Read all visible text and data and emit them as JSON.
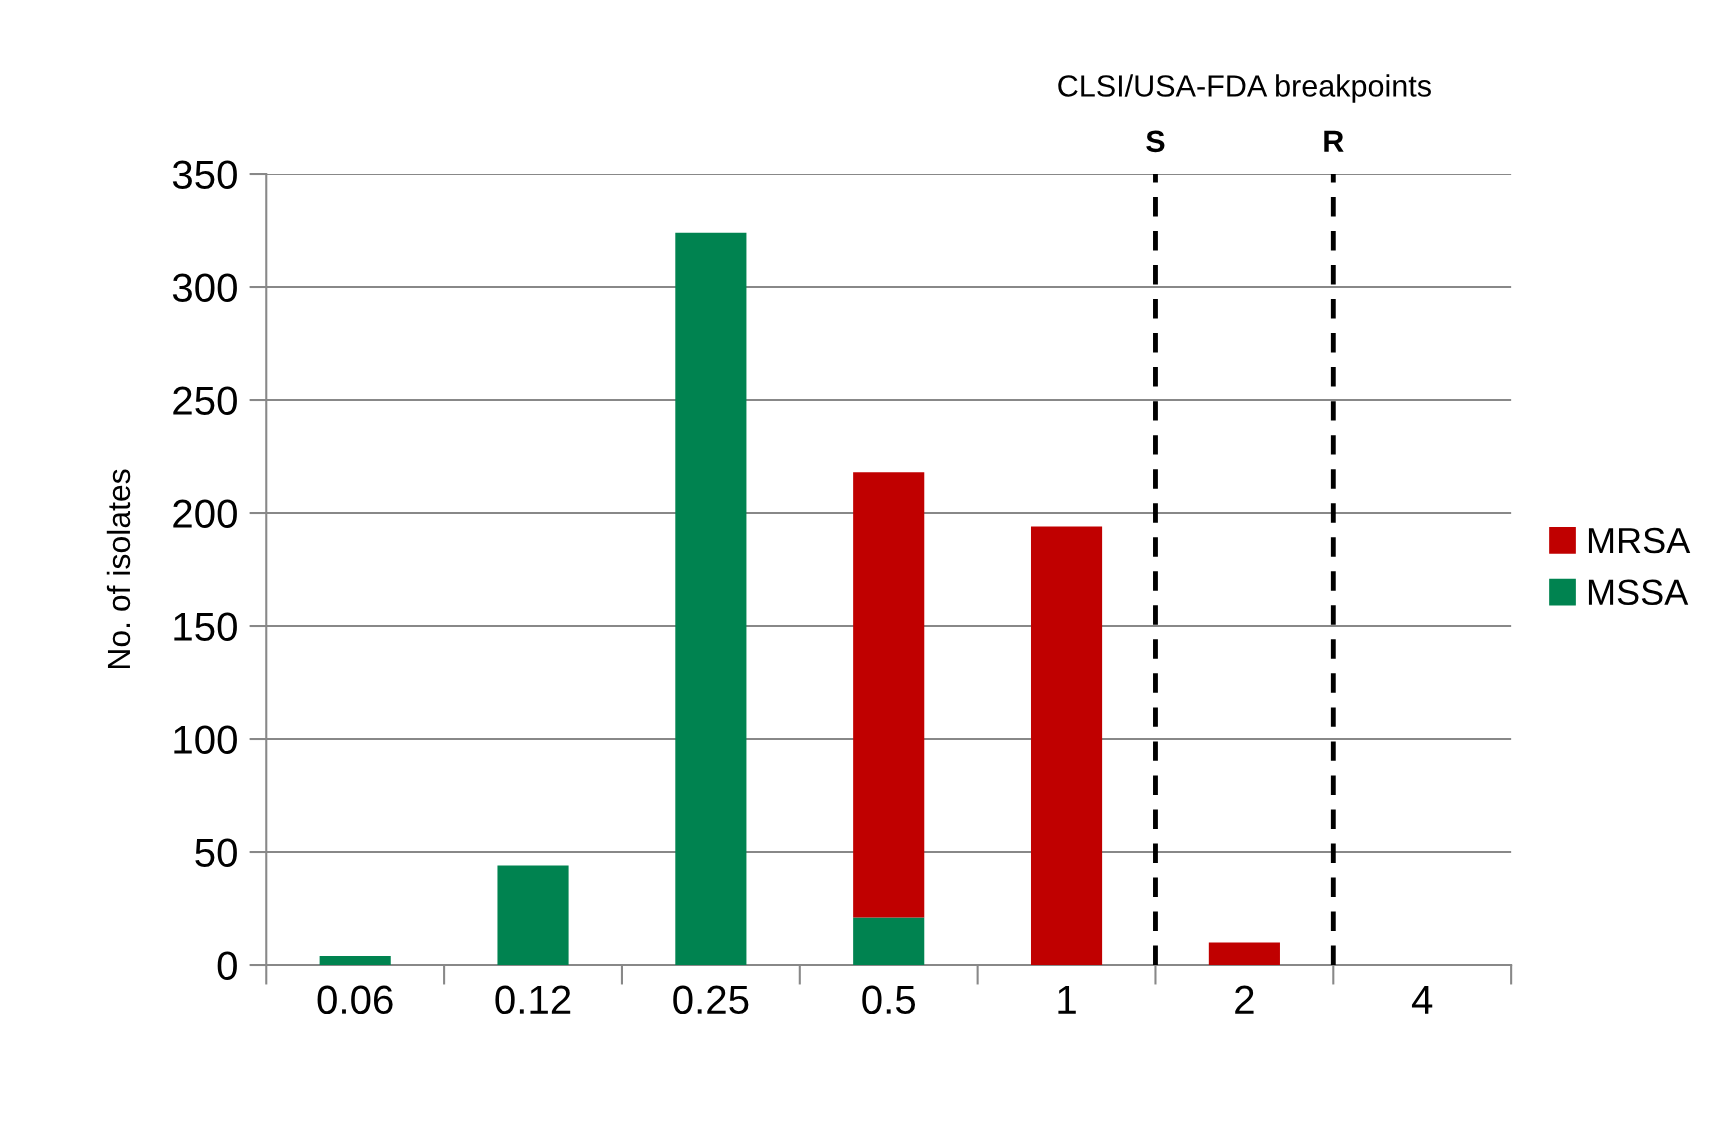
{
  "chart_data": {
    "type": "bar",
    "stacked": true,
    "ylabel": "No. of isolates",
    "categories": [
      "0.06",
      "0.12",
      "0.25",
      "0.5",
      "1",
      "2",
      "4"
    ],
    "series": [
      {
        "name": "MSSA",
        "color": "#008350",
        "values": [
          4,
          44,
          324,
          21,
          0,
          0,
          0
        ]
      },
      {
        "name": "MRSA",
        "color": "#c00000",
        "values": [
          0,
          0,
          0,
          197,
          194,
          10,
          0
        ]
      }
    ],
    "ylim": [
      0,
      350
    ],
    "yticks": [
      0,
      50,
      100,
      150,
      200,
      250,
      300,
      350
    ],
    "grid": "y",
    "legend": "right",
    "annotations": [
      "CLSI/USA-FDA breakpoints",
      "S",
      "R"
    ]
  }
}
